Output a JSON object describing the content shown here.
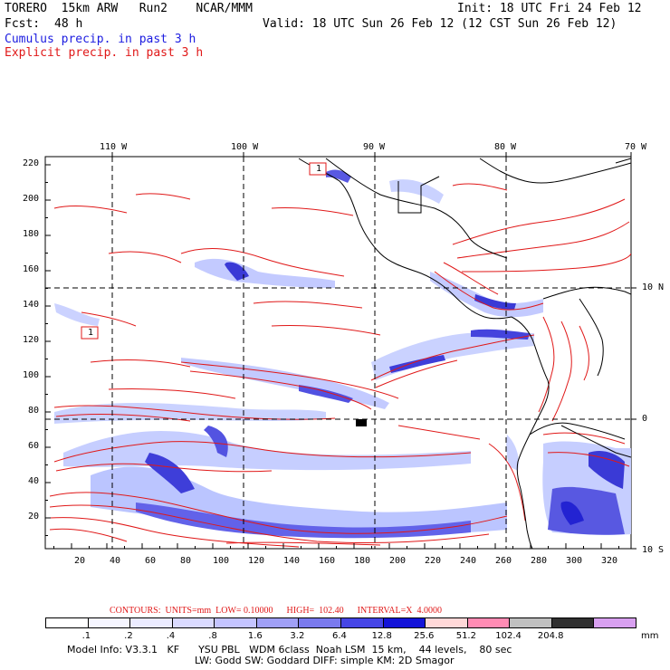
{
  "header": {
    "model": "TORERO  15km ARW   Run2    NCAR/MMM",
    "init": "Init: 18 UTC Fri 24 Feb 12",
    "fcst_label": "Fcst:",
    "fcst_value": "48 h",
    "valid": "Valid: 18 UTC Sun 26 Feb 12 (12 CST Sun 26 Feb 12)",
    "cumulus": "Cumulus precip. in past 3 h",
    "explicit": "Explicit precip. in past 3 h"
  },
  "map": {
    "top_axis": [
      {
        "label": "110 W"
      },
      {
        "label": "100 W"
      },
      {
        "label": "90 W"
      },
      {
        "label": "80 W"
      },
      {
        "label": "70 W"
      }
    ],
    "right_axis": [
      {
        "label": "10 N"
      },
      {
        "label": "0"
      },
      {
        "label": "10 S"
      }
    ],
    "y_ticks": [
      "220",
      "200",
      "180",
      "160",
      "140",
      "120",
      "100",
      "80",
      "60",
      "40",
      "20"
    ],
    "x_ticks": [
      "20",
      "40",
      "60",
      "80",
      "100",
      "120",
      "140",
      "160",
      "180",
      "200",
      "220",
      "240",
      "260",
      "280",
      "300",
      "320"
    ],
    "marker_labels": [
      "1",
      "1"
    ]
  },
  "colorbar": {
    "contour_line": "CONTOURS:  UNITS=mm  LOW= 0.10000      HIGH=  102.40      INTERVAL=X  4.0000",
    "colors": [
      "#ffffff",
      "#f5f5ff",
      "#ebebff",
      "#dadaff",
      "#c4c4ff",
      "#a0a0f6",
      "#7a7aee",
      "#4646e6",
      "#1414d8",
      "#ffd8d8",
      "#ff8cb4",
      "#c0c0c0",
      "#303030",
      "#d8a0f0"
    ],
    "labels": [
      ".1",
      ".2",
      ".4",
      ".8",
      "1.6",
      "3.2",
      "6.4",
      "12.8",
      "25.6",
      "51.2",
      "102.4",
      "204.8"
    ],
    "unit": "mm"
  },
  "footer": {
    "line1": "Model Info: V3.3.1   KF      YSU PBL   WDM 6class  Noah LSM  15 km,    44 levels,    80 sec",
    "line2": "LW: Godd SW: Goddard DIFF: simple KM: 2D Smagor"
  }
}
